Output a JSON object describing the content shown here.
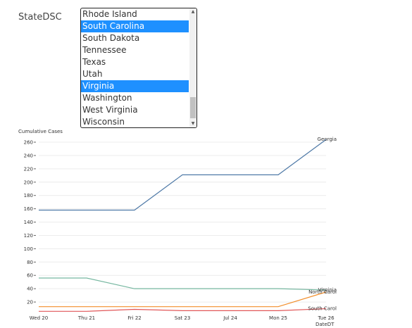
{
  "filter": {
    "label": "StateDSC",
    "options": [
      {
        "label": "Rhode Island",
        "selected": false
      },
      {
        "label": "South Carolina",
        "selected": true
      },
      {
        "label": "South Dakota",
        "selected": false
      },
      {
        "label": "Tennessee",
        "selected": false
      },
      {
        "label": "Texas",
        "selected": false
      },
      {
        "label": "Utah",
        "selected": false
      },
      {
        "label": "Virginia",
        "selected": true
      },
      {
        "label": "Washington",
        "selected": false
      },
      {
        "label": "West Virginia",
        "selected": false
      },
      {
        "label": "Wisconsin",
        "selected": false
      }
    ],
    "scroll_up_icon": "triangle-up",
    "scroll_down_icon": "triangle-down"
  },
  "chart_data": {
    "type": "line",
    "ylabel": "Cumulative Cases",
    "xlabel": "DateDT",
    "ylim": [
      0,
      270
    ],
    "yticks": [
      20,
      40,
      60,
      80,
      100,
      120,
      140,
      160,
      180,
      200,
      220,
      240,
      260
    ],
    "categories": [
      "Wed 20",
      "Thu 21",
      "Fri 22",
      "Sat 23",
      "Jul 24",
      "Mon 25",
      "Tue 26"
    ],
    "grid": true,
    "series": [
      {
        "name": "Georgia",
        "color": "#4e79a7",
        "values": [
          158,
          158,
          158,
          211,
          211,
          211,
          264
        ],
        "label_text": "Georgia"
      },
      {
        "name": "Virginia",
        "color": "#76b7a0",
        "values": [
          56,
          56,
          40,
          40,
          40,
          40,
          38
        ],
        "label_text": "Virginia"
      },
      {
        "name": "North Carolina",
        "color": "#f28e2b",
        "values": [
          13,
          13,
          13,
          13,
          13,
          13,
          35
        ],
        "label_text": "North Carol"
      },
      {
        "name": "South Carolina",
        "color": "#e15759",
        "values": [
          6,
          6,
          9,
          7,
          7,
          7,
          10
        ],
        "label_text": "South Carol"
      }
    ]
  }
}
